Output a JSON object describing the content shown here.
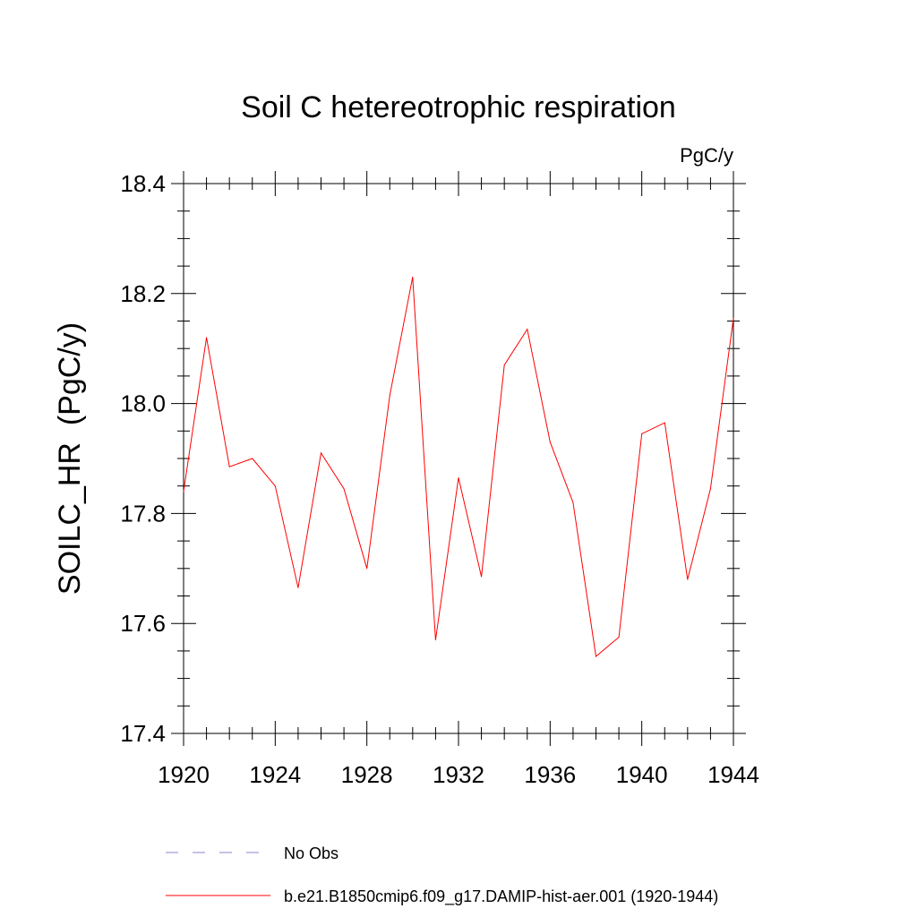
{
  "chart_data": {
    "type": "line",
    "title": "Soil C hetereotrophic respiration",
    "units_label": "PgC/y",
    "ylabel": "SOILC_HR  (PgC/y)",
    "xlabel": "",
    "xlim": [
      1920,
      1944
    ],
    "ylim": [
      17.4,
      18.4
    ],
    "x_major_ticks": [
      1920,
      1924,
      1928,
      1932,
      1936,
      1940,
      1944
    ],
    "x_tick_labels": [
      "1920",
      "1924",
      "1928",
      "1932",
      "1936",
      "1940",
      "1944"
    ],
    "x_minor_step": 1,
    "y_major_ticks": [
      17.4,
      17.6,
      17.8,
      18.0,
      18.2,
      18.4
    ],
    "y_tick_labels": [
      "17.4",
      "17.6",
      "17.8",
      "18.0",
      "18.2",
      "18.4"
    ],
    "y_minor_step": 0.05,
    "grid": false,
    "legend_position": "bottom",
    "series": [
      {
        "name": "b.e21.B1850cmip6.f09_g17.DAMIP-hist-aer.001 (1920-1944)",
        "color": "#ff0000",
        "style": "solid",
        "x": [
          1920,
          1921,
          1922,
          1923,
          1924,
          1925,
          1926,
          1927,
          1928,
          1929,
          1930,
          1931,
          1932,
          1933,
          1934,
          1935,
          1936,
          1937,
          1938,
          1939,
          1940,
          1941,
          1942,
          1943,
          1944
        ],
        "values": [
          17.84,
          18.12,
          17.885,
          17.9,
          17.85,
          17.665,
          17.91,
          17.845,
          17.7,
          18.015,
          18.23,
          17.57,
          17.865,
          17.685,
          18.07,
          18.135,
          17.93,
          17.82,
          17.54,
          17.575,
          17.945,
          17.965,
          17.68,
          17.845,
          18.155
        ]
      }
    ],
    "legend": [
      {
        "label": "No Obs",
        "color": "#8a84c8",
        "style": "dashed"
      },
      {
        "label": "b.e21.B1850cmip6.f09_g17.DAMIP-hist-aer.001 (1920-1944)",
        "color": "#ff0000",
        "style": "solid"
      }
    ]
  }
}
